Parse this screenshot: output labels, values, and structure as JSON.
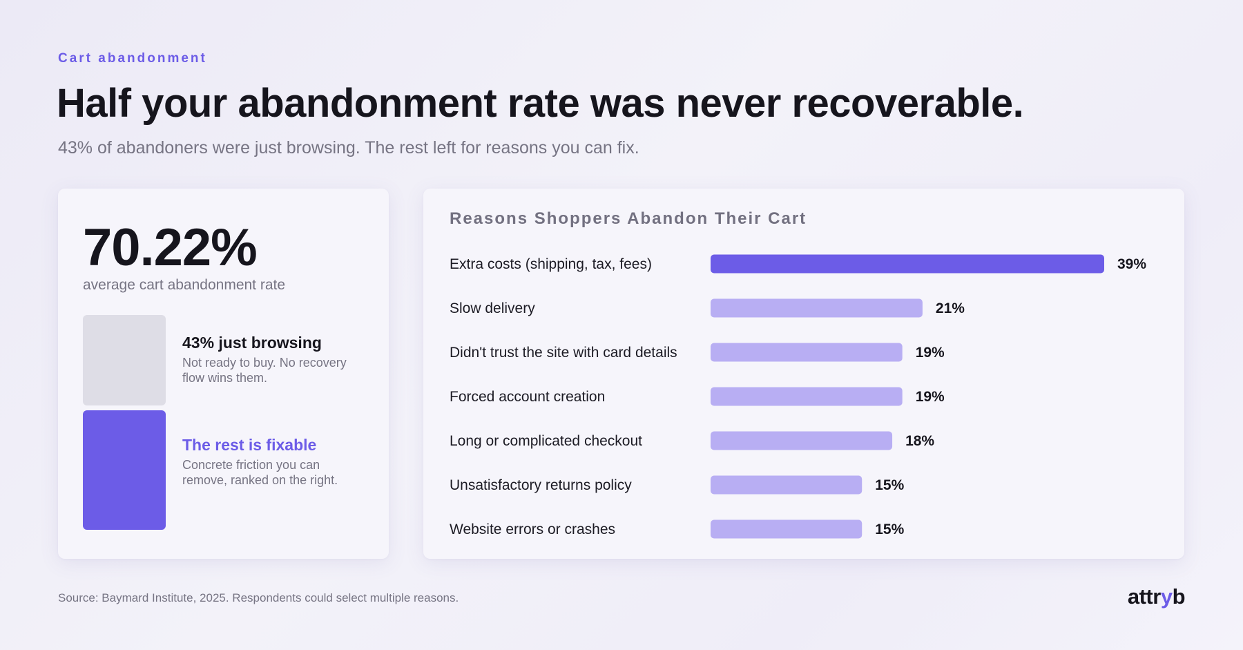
{
  "header": {
    "eyebrow": "Cart abandonment",
    "title": "Half your abandonment rate was never recoverable.",
    "subtitle": "43% of abandoners were just browsing. The rest left for reasons you can fix."
  },
  "summary": {
    "rate": "70.22%",
    "rate_caption": "average cart abandonment rate",
    "segments": [
      {
        "title": "43% just browsing",
        "desc": "Not ready to buy. No recovery flow wins them.",
        "color": "#dedde6"
      },
      {
        "title": "The rest is fixable",
        "desc": "Concrete friction you can remove, ranked on the right.",
        "color": "#6c5ce7"
      }
    ]
  },
  "chart_data": {
    "type": "bar",
    "orientation": "horizontal",
    "title": "Reasons Shoppers Abandon Their Cart",
    "categories": [
      "Extra costs (shipping, tax, fees)",
      "Slow delivery",
      "Didn't trust the site with card details",
      "Forced account creation",
      "Long or complicated checkout",
      "Unsatisfactory returns policy",
      "Website errors or crashes"
    ],
    "values": [
      39,
      21,
      19,
      19,
      18,
      15,
      15
    ],
    "value_labels": [
      "39%",
      "21%",
      "19%",
      "19%",
      "18%",
      "15%",
      "15%"
    ],
    "xlim": [
      0,
      39
    ],
    "colors": {
      "highlight": "#6c5ce7",
      "default": "#b8aef3"
    }
  },
  "footer": {
    "source": "Source: Baymard Institute, 2025. Respondents could select multiple reasons.",
    "logo_prefix": "attr",
    "logo_accent": "y",
    "logo_suffix": "b"
  }
}
